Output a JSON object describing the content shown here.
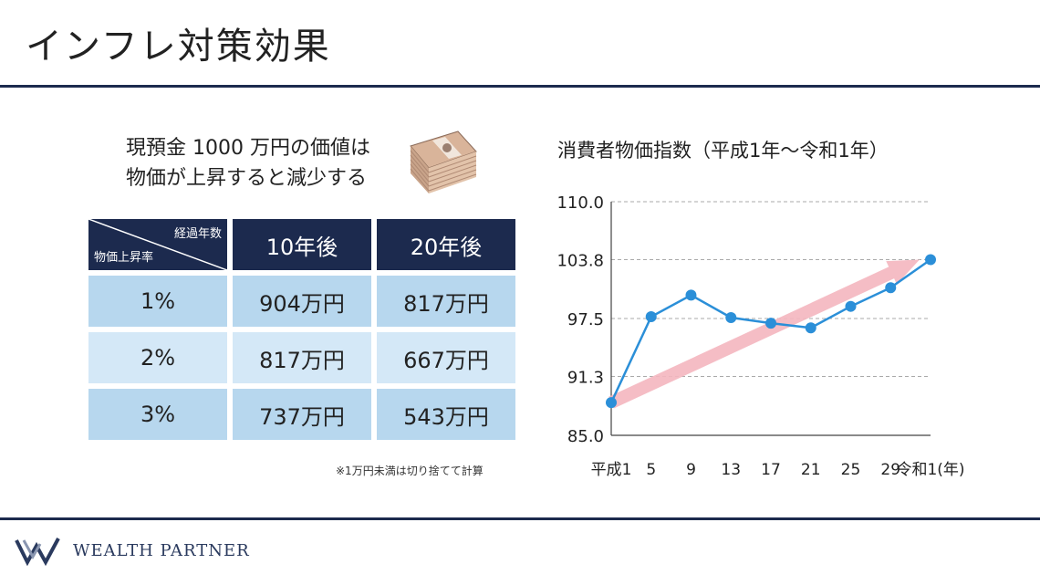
{
  "title": "インフレ対策効果",
  "headline": {
    "line1": "現預金 1000 万円の価値は",
    "line2": "物価が上昇すると減少する"
  },
  "table": {
    "corner_top": "経過年数",
    "corner_bottom": "物価上昇率",
    "columns": [
      "10年後",
      "20年後"
    ],
    "rows": [
      {
        "rate": "1%",
        "values": [
          "904万円",
          "817万円"
        ]
      },
      {
        "rate": "2%",
        "values": [
          "817万円",
          "667万円"
        ]
      },
      {
        "rate": "3%",
        "values": [
          "737万円",
          "543万円"
        ]
      }
    ]
  },
  "note": "※1万円未満は切り捨てて計算",
  "chart_title": "消費者物価指数（平成1年〜令和1年）",
  "chart_data": {
    "type": "line",
    "title": "消費者物価指数（平成1年〜令和1年）",
    "categories": [
      "平成1",
      "5",
      "9",
      "13",
      "17",
      "21",
      "25",
      "29",
      "令和1(年)"
    ],
    "values": [
      88.5,
      97.7,
      100.0,
      97.6,
      97.0,
      96.5,
      98.8,
      100.8,
      103.8
    ],
    "ylim": [
      85.0,
      110.0
    ],
    "yticks": [
      "85.0",
      "91.3",
      "97.5",
      "103.8",
      "110.0"
    ],
    "grid": true,
    "line_color": "#2b8fd8",
    "trend_arrow_color": "#f4b6bf"
  },
  "footer": {
    "brand": "WEALTH PARTNER"
  },
  "colors": {
    "navy": "#1c2a4e",
    "row_dark": "#b7d7ee",
    "row_light": "#d4e8f7"
  }
}
